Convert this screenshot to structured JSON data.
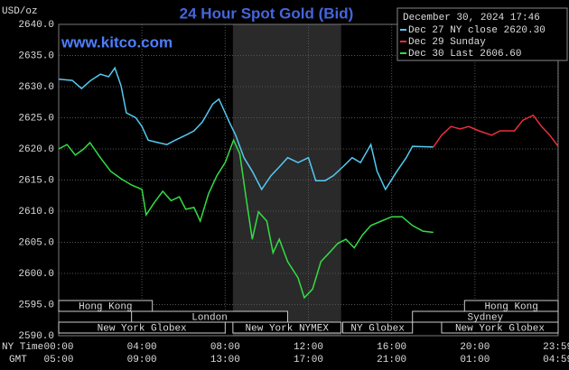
{
  "chart_data": {
    "type": "line",
    "title": "24 Hour Spot Gold (Bid)",
    "subtitle": "www.kitco.com",
    "y_label": "USD/oz",
    "timestamp": "December 30, 2024 17:46",
    "x_label": "NY Time",
    "x2_label": "GMT",
    "xlim": [
      0,
      24
    ],
    "ylim": [
      2590,
      2640
    ],
    "xticks": [
      {
        "value": 0,
        "label": "00:00"
      },
      {
        "value": 4,
        "label": "04:00"
      },
      {
        "value": 8,
        "label": "08:00"
      },
      {
        "value": 12,
        "label": "12:00"
      },
      {
        "value": 16,
        "label": "16:00"
      },
      {
        "value": 20,
        "label": "20:00"
      },
      {
        "value": 23.983,
        "label": "23:59"
      }
    ],
    "x2ticks": [
      {
        "value": 0,
        "label": "05:00"
      },
      {
        "value": 4,
        "label": "09:00"
      },
      {
        "value": 8,
        "label": "13:00"
      },
      {
        "value": 12,
        "label": "17:00"
      },
      {
        "value": 16,
        "label": "21:00"
      },
      {
        "value": 20,
        "label": "01:00"
      },
      {
        "value": 23.983,
        "label": "04:59"
      }
    ],
    "yticks": [
      {
        "value": 2590,
        "label": "2590.0"
      },
      {
        "value": 2595,
        "label": "2595.0"
      },
      {
        "value": 2600,
        "label": "2600.0"
      },
      {
        "value": 2605,
        "label": "2605.0"
      },
      {
        "value": 2610,
        "label": "2610.0"
      },
      {
        "value": 2615,
        "label": "2615.0"
      },
      {
        "value": 2620,
        "label": "2620.0"
      },
      {
        "value": 2625,
        "label": "2625.0"
      },
      {
        "value": 2630,
        "label": "2630.0"
      },
      {
        "value": 2635,
        "label": "2635.0"
      },
      {
        "value": 2640,
        "label": "2640.0"
      }
    ],
    "grid": true,
    "sessions": [
      "Hong Kong",
      "London",
      "New York Globex",
      "New York NYMEX",
      "NY Globex",
      "Hong Kong",
      "Sydney",
      "New York Globex"
    ],
    "series": [
      {
        "name": "Dec 27 NY close 2620.30",
        "color": "#55c8f0",
        "x": [
          0,
          0.65,
          1.1,
          1.5,
          2,
          2.4,
          2.7,
          3,
          3.25,
          3.7,
          4,
          4.3,
          4.8,
          5.2,
          5.6,
          6.1,
          6.5,
          6.9,
          7.4,
          7.7,
          8,
          8.2,
          8.5,
          8.9,
          9.3,
          9.75,
          10.2,
          10.6,
          11,
          11.5,
          12,
          12.35,
          12.8,
          13.2,
          13.65,
          14.1,
          14.5,
          15,
          15.3,
          15.7,
          16.25,
          16.7,
          17,
          18
        ],
        "values": [
          2631.2,
          2631,
          2629.7,
          2630.9,
          2632,
          2631.6,
          2633,
          2630.1,
          2625.8,
          2625,
          2623.6,
          2621.4,
          2621,
          2620.7,
          2621.4,
          2622.2,
          2622.9,
          2624.3,
          2627.2,
          2628,
          2625.8,
          2624.3,
          2622.2,
          2618.6,
          2616.4,
          2613.5,
          2615.7,
          2617.1,
          2618.6,
          2617.8,
          2618.6,
          2614.9,
          2614.9,
          2615.7,
          2617.1,
          2618.6,
          2617.8,
          2620.7,
          2616.4,
          2613.5,
          2616.4,
          2618.6,
          2620.4,
          2620.3
        ]
      },
      {
        "name": "Dec 29 Sunday",
        "color": "#e8303a",
        "x": [
          18,
          18.4,
          18.85,
          19.3,
          19.7,
          20.2,
          20.8,
          21.2,
          21.9,
          22.3,
          22.8,
          23.2,
          23.6,
          24
        ],
        "values": [
          2620.3,
          2622.2,
          2623.6,
          2623.2,
          2623.6,
          2622.9,
          2622.2,
          2622.9,
          2622.9,
          2624.6,
          2625.4,
          2623.6,
          2622.2,
          2620.4
        ]
      },
      {
        "name": "Dec 30 Last 2606.60",
        "color": "#33dd44",
        "x": [
          0,
          0.4,
          0.8,
          1.2,
          1.5,
          2,
          2.5,
          3,
          3.5,
          4,
          4.2,
          4.6,
          5,
          5.4,
          5.8,
          6.1,
          6.5,
          6.8,
          7.2,
          7.6,
          8,
          8.4,
          8.7,
          9,
          9.3,
          9.6,
          10,
          10.3,
          10.6,
          11,
          11.5,
          11.8,
          12.2,
          12.6,
          13,
          13.4,
          13.8,
          14.2,
          14.6,
          15,
          15.5,
          16,
          16.5,
          17,
          17.5,
          18
        ],
        "values": [
          2620,
          2620.7,
          2619,
          2620,
          2621,
          2618.6,
          2616.4,
          2615.2,
          2614.2,
          2613.5,
          2609.4,
          2611.4,
          2613.2,
          2611.7,
          2612.3,
          2610.3,
          2610.6,
          2608.4,
          2612.8,
          2615.7,
          2617.8,
          2621.4,
          2619.2,
          2612.2,
          2605.5,
          2609.9,
          2608.4,
          2603.3,
          2605.5,
          2601.9,
          2599.3,
          2596.1,
          2597.5,
          2601.9,
          2603.3,
          2604.8,
          2605.5,
          2604.1,
          2606.2,
          2607.7,
          2608.4,
          2609.1,
          2609.1,
          2607.7,
          2606.8,
          2606.6
        ]
      }
    ]
  }
}
